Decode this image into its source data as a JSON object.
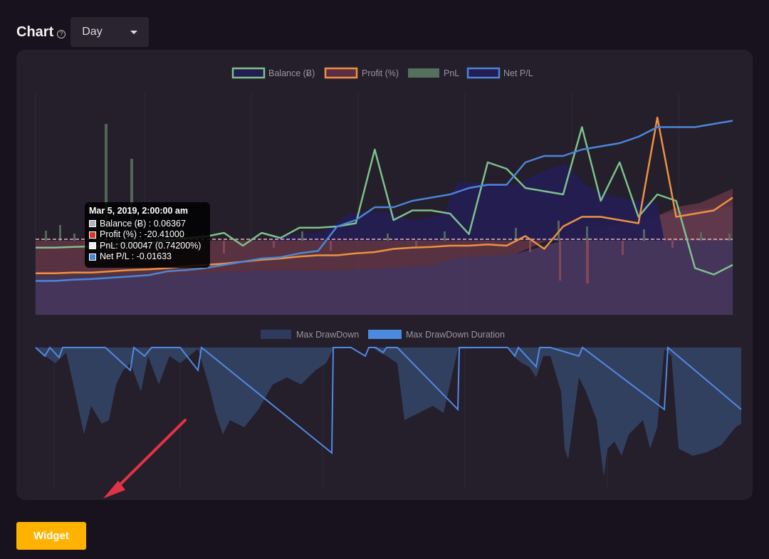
{
  "header": {
    "title": "Chart",
    "help_icon": "question-circle-icon",
    "period_select": {
      "value": "Day"
    }
  },
  "chart_data": [
    {
      "type": "line",
      "series": [
        {
          "name": "Balance (Ƀ)",
          "color": "#7cc28a",
          "fill": "#241d52",
          "values": [
            -0.13,
            -0.13,
            -0.12,
            -0.11,
            -0.1,
            -0.05,
            -0.06,
            -0.02,
            0.02,
            0.04,
            0.1,
            -0.1,
            0.1,
            0.02,
            0.18,
            0.18,
            0.2,
            0.25,
            1.4,
            0.3,
            0.45,
            0.45,
            0.4,
            0.08,
            1.2,
            1.1,
            0.8,
            0.75,
            0.7,
            1.75,
            0.6,
            1.2,
            0.35,
            0.7,
            0.6,
            -0.45,
            -0.55,
            -0.4
          ]
        },
        {
          "name": "Profit (%)",
          "color": "#ee9140",
          "fill": "#5a2f45",
          "values": [
            -0.53,
            -0.53,
            -0.52,
            -0.52,
            -0.5,
            -0.48,
            -0.47,
            -0.45,
            -0.42,
            -0.4,
            -0.38,
            -0.35,
            -0.32,
            -0.3,
            -0.27,
            -0.25,
            -0.25,
            -0.22,
            -0.2,
            -0.15,
            -0.13,
            -0.12,
            -0.1,
            -0.1,
            -0.08,
            -0.1,
            0.05,
            -0.15,
            0.2,
            0.35,
            0.35,
            0.3,
            0.25,
            1.9,
            0.35,
            0.4,
            0.45,
            0.65
          ]
        },
        {
          "name": "PnL",
          "color": "#56705e",
          "values": []
        },
        {
          "name": "Net P/L",
          "color": "#4a86d8",
          "values": [
            -0.65,
            -0.65,
            -0.63,
            -0.62,
            -0.6,
            -0.58,
            -0.56,
            -0.5,
            -0.48,
            -0.45,
            -0.4,
            -0.35,
            -0.3,
            -0.28,
            -0.22,
            -0.18,
            0.2,
            0.3,
            0.5,
            0.5,
            0.6,
            0.65,
            0.7,
            0.8,
            0.85,
            0.85,
            1.2,
            1.3,
            1.3,
            1.4,
            1.45,
            1.5,
            1.6,
            1.75,
            1.75,
            1.75,
            1.8,
            1.85
          ]
        }
      ]
    },
    {
      "type": "area",
      "series": [
        {
          "name": "Max DrawDown",
          "color": "#2e3a5e"
        },
        {
          "name": "Max DrawDown Duration",
          "color": "#4b8adf"
        }
      ]
    }
  ],
  "tooltip": {
    "title": "Mar 5, 2019, 2:00:00 am",
    "rows": [
      {
        "label": "Balance (Ƀ) : 0.06367",
        "color": "#b3b3c0"
      },
      {
        "label": "Profit (%) : -20.41000",
        "color": "#d7382d"
      },
      {
        "label": "PnL: 0.00047 (0.74200%)",
        "color": "#eeeeee"
      },
      {
        "label": "Net P/L : -0.01633",
        "color": "#4a86d8"
      }
    ]
  },
  "annotation": {
    "icon": "red-arrow-icon",
    "color": "#e03347"
  },
  "footer": {
    "widget_label": "Widget"
  }
}
